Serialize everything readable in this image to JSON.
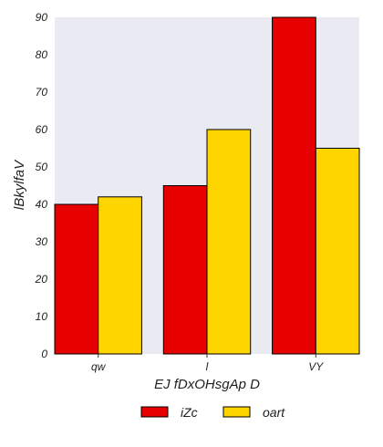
{
  "chart_data": {
    "type": "bar",
    "categories": [
      "qw",
      "l",
      "VY"
    ],
    "series": [
      {
        "name": "iZc",
        "values": [
          40,
          45,
          90
        ],
        "color": "#e60000"
      },
      {
        "name": "oart",
        "values": [
          42,
          60,
          55
        ],
        "color": "#ffd500"
      }
    ],
    "xlabel": "EJ fDxOHsgAp D",
    "ylabel": "lBkylfaV",
    "ylim": [
      0,
      90
    ],
    "yticks": [
      0,
      10,
      20,
      30,
      40,
      50,
      60,
      70,
      80,
      90
    ],
    "grid": false,
    "legend_position": "bottom-center",
    "plot_background": "#eaeaf2",
    "bar_edge_color": "#000000"
  }
}
